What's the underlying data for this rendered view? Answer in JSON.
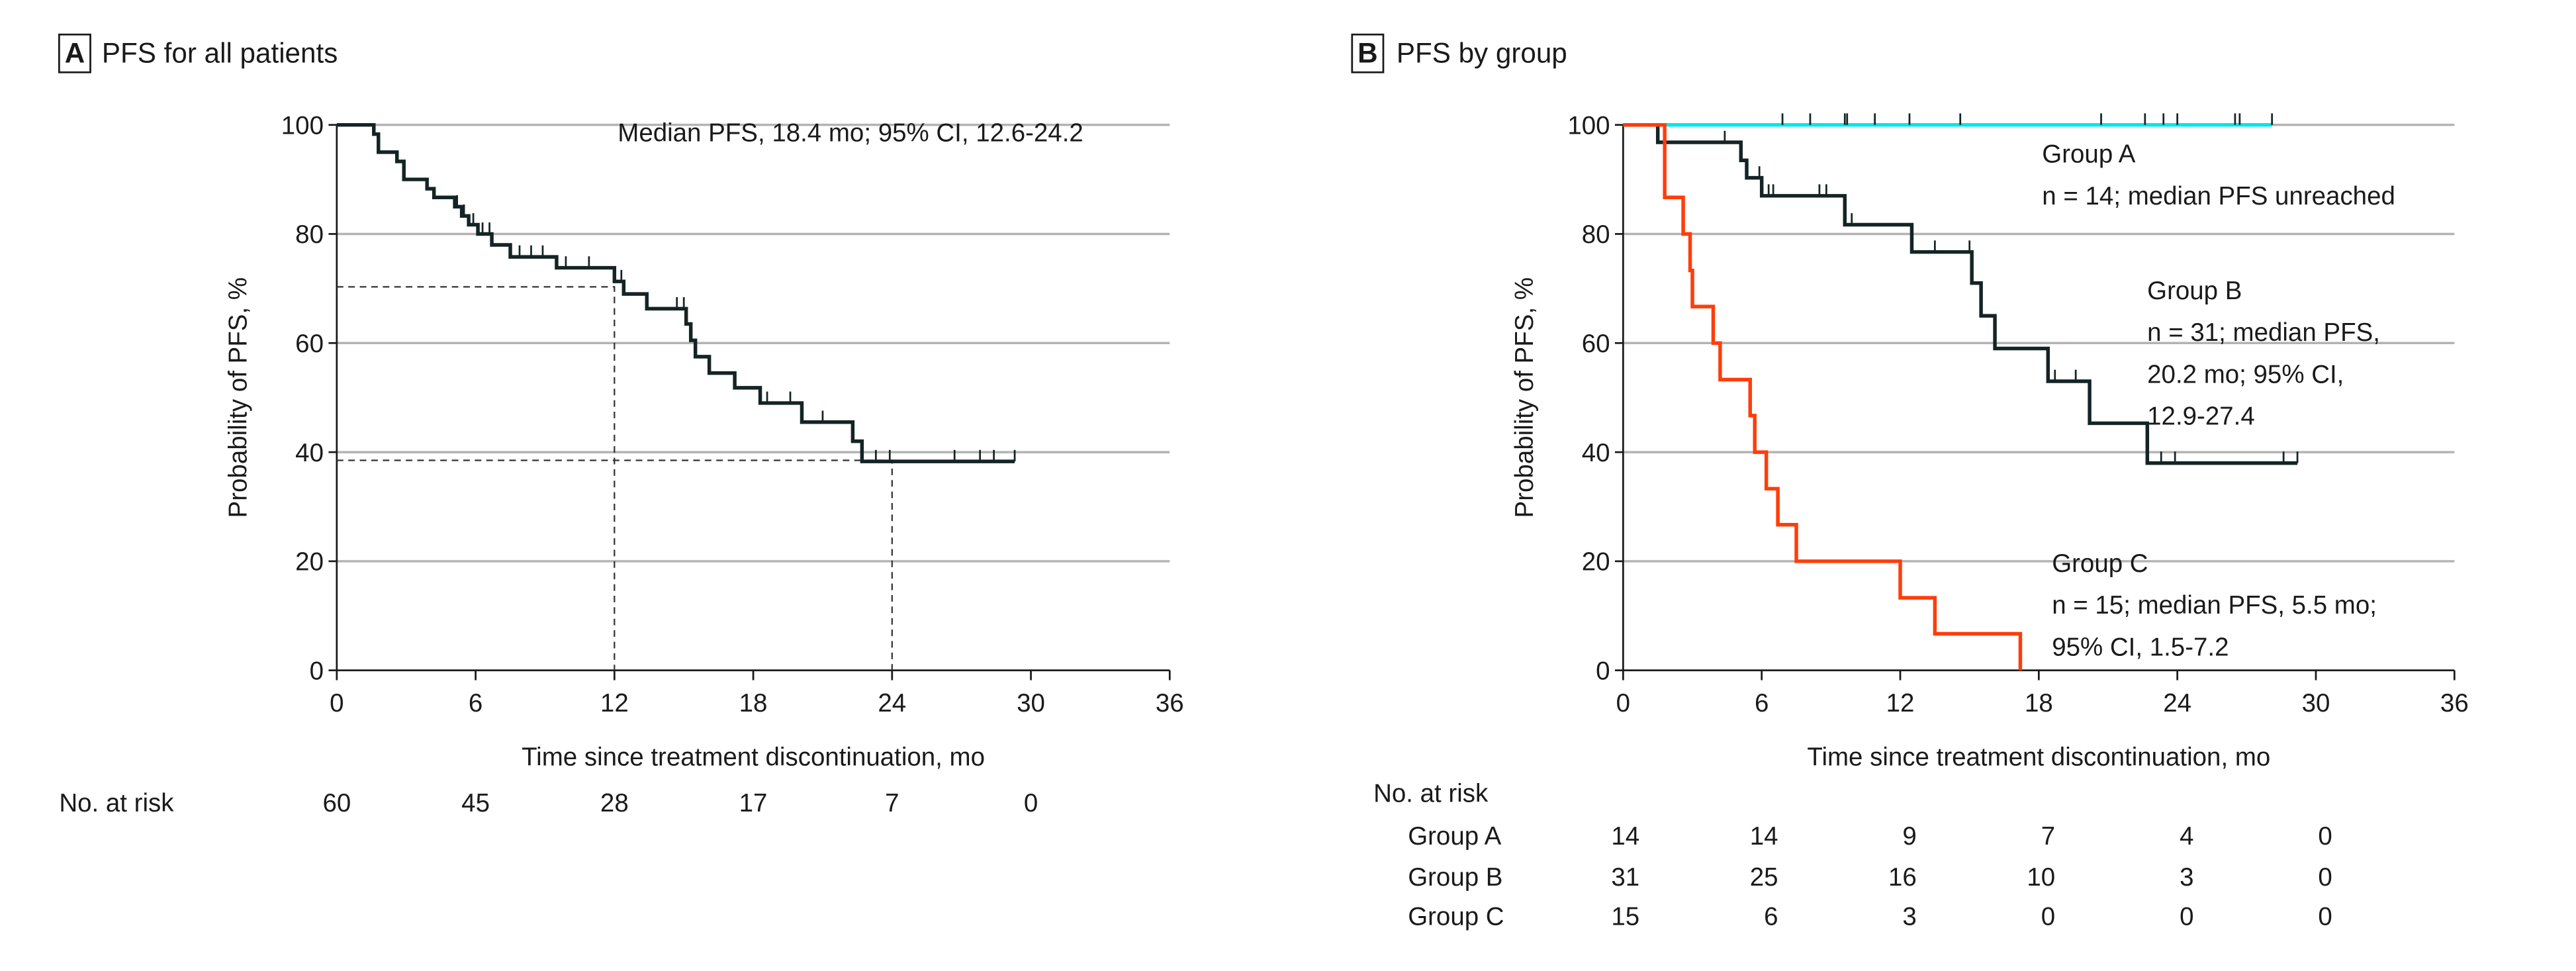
{
  "chart_data": [
    {
      "type": "line",
      "subtype": "kaplan-meier",
      "panel_label": "A",
      "title": "PFS for all patients",
      "xlabel": "Time since treatment discontinuation, mo",
      "ylabel": "Probability of PFS, %",
      "xlim": [
        0,
        36
      ],
      "ylim": [
        0,
        100
      ],
      "xticks": [
        "0",
        "6",
        "12",
        "18",
        "24",
        "30",
        "36"
      ],
      "yticks": [
        "0",
        "20",
        "40",
        "60",
        "80",
        "100"
      ],
      "grid": "horizontal",
      "annotations": [
        "Median PFS, 18.4 mo; 95% CI, 12.6-24.2"
      ],
      "reference_lines": [
        {
          "time": 12,
          "survival": 70.3
        },
        {
          "time": 24,
          "survival": 38.5
        }
      ],
      "series": [
        {
          "name": "All patients",
          "color": "#142424",
          "steps": [
            [
              1.6,
              98.3
            ],
            [
              1.8,
              95
            ],
            [
              2.6,
              93.3
            ],
            [
              2.9,
              90
            ],
            [
              3.9,
              88.3
            ],
            [
              4.2,
              86.7
            ],
            [
              5.1,
              85
            ],
            [
              5.4,
              83.3
            ],
            [
              5.7,
              81.7
            ],
            [
              6.1,
              80
            ],
            [
              6.7,
              78
            ],
            [
              7.5,
              75.8
            ],
            [
              9.5,
              73.8
            ],
            [
              12.0,
              71.3
            ],
            [
              12.4,
              69
            ],
            [
              13.4,
              66.3
            ],
            [
              15.1,
              63.5
            ],
            [
              15.3,
              60.5
            ],
            [
              15.5,
              57.5
            ],
            [
              16.1,
              54.5
            ],
            [
              17.2,
              51.8
            ],
            [
              18.3,
              49
            ],
            [
              20.1,
              45.5
            ],
            [
              22.3,
              42
            ],
            [
              22.7,
              38.3
            ]
          ],
          "end": 29.3,
          "censored": [
            5.2,
            5.5,
            5.9,
            6.3,
            6.6,
            7.9,
            8.4,
            8.9,
            9.9,
            10.9,
            12.3,
            14.7,
            15.0,
            18.6,
            19.6,
            21.0,
            23.3,
            23.9,
            26.7,
            27.8,
            28.4,
            29.3
          ]
        }
      ],
      "risk_table": {
        "label": "No. at risk",
        "times": [
          0,
          6,
          12,
          18,
          24,
          30
        ],
        "rows": [
          {
            "name": "",
            "values": [
              "60",
              "45",
              "28",
              "17",
              "7",
              "0"
            ]
          }
        ]
      }
    },
    {
      "type": "line",
      "subtype": "kaplan-meier",
      "panel_label": "B",
      "title": "PFS by group",
      "xlabel": "Time since treatment discontinuation, mo",
      "ylabel": "Probability of PFS, %",
      "xlim": [
        0,
        36
      ],
      "ylim": [
        0,
        100
      ],
      "xticks": [
        "0",
        "6",
        "12",
        "18",
        "24",
        "30",
        "36"
      ],
      "yticks": [
        "0",
        "20",
        "40",
        "60",
        "80",
        "100"
      ],
      "grid": "horizontal",
      "series": [
        {
          "name": "Group A",
          "color": "#00e5f0",
          "label_lines": [
            "Group A",
            "n = 14; median PFS unreached"
          ],
          "steps": [],
          "end": 28.1,
          "censored": [
            6.9,
            8.1,
            9.6,
            9.7,
            10.9,
            12.4,
            14.6,
            20.7,
            22.6,
            23.4,
            24.0,
            26.5,
            26.7,
            28.1
          ]
        },
        {
          "name": "Group B",
          "color": "#142424",
          "label_lines": [
            "Group B",
            "n = 31; median PFS,",
            "20.2 mo; 95% CI,",
            "12.9-27.4"
          ],
          "steps": [
            [
              1.5,
              96.8
            ],
            [
              5.1,
              93.5
            ],
            [
              5.35,
              90.3
            ],
            [
              6.0,
              87
            ],
            [
              9.6,
              81.7
            ],
            [
              12.5,
              76.7
            ],
            [
              15.1,
              71
            ],
            [
              15.5,
              65
            ],
            [
              16.1,
              59
            ],
            [
              18.4,
              53
            ],
            [
              20.2,
              45.3
            ],
            [
              22.7,
              38
            ]
          ],
          "end": 29.2,
          "censored": [
            4.4,
            5.9,
            6.3,
            6.5,
            8.5,
            8.8,
            9.9,
            13.5,
            15.0,
            18.7,
            19.6,
            23.3,
            23.9,
            28.6,
            29.2
          ]
        },
        {
          "name": "Group C",
          "color": "#ff3d0a",
          "label_lines": [
            "Group C",
            "n = 15; median PFS, 5.5 mo;",
            "95% CI, 1.5-7.2"
          ],
          "steps": [
            [
              1.8,
              86.7
            ],
            [
              2.6,
              80
            ],
            [
              2.9,
              73.3
            ],
            [
              3.0,
              66.7
            ],
            [
              3.9,
              60
            ],
            [
              4.2,
              53.3
            ],
            [
              5.5,
              46.7
            ],
            [
              5.7,
              40
            ],
            [
              6.2,
              33.3
            ],
            [
              6.7,
              26.7
            ],
            [
              7.5,
              20
            ],
            [
              12.0,
              13.3
            ],
            [
              13.5,
              6.7
            ],
            [
              17.2,
              0
            ]
          ],
          "end": 17.2,
          "censored": []
        }
      ],
      "risk_table": {
        "label": "No. at risk",
        "times": [
          0,
          6,
          12,
          18,
          24,
          30
        ],
        "rows": [
          {
            "name": "Group A",
            "values": [
              "14",
              "14",
              "9",
              "7",
              "4",
              "0"
            ]
          },
          {
            "name": "Group B",
            "values": [
              "31",
              "25",
              "16",
              "10",
              "3",
              "0"
            ]
          },
          {
            "name": "Group C",
            "values": [
              "15",
              "6",
              "3",
              "0",
              "0",
              "0"
            ]
          }
        ]
      }
    }
  ]
}
